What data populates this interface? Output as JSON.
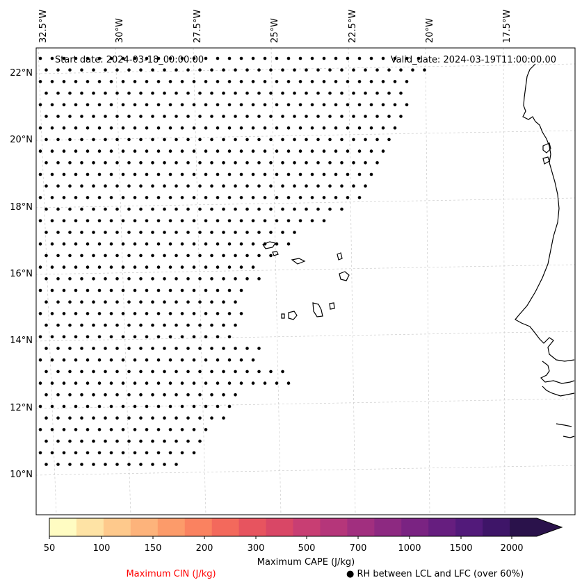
{
  "map": {
    "start_label": "Start date: 2024-03-18_00:00:00",
    "valid_label": "Valid_date: 2024-03-19T11:00:00.00",
    "lon_labels": [
      "32.5°W",
      "30°W",
      "27.5°W",
      "25°W",
      "22.5°W",
      "20°W",
      "17.5°W"
    ],
    "lat_labels": [
      "22°N",
      "20°N",
      "18°N",
      "16°N",
      "14°N",
      "12°N",
      "10°N"
    ],
    "gridline_color": "#cccccc",
    "coastline_color": "#000000",
    "dot_color": "#000000"
  },
  "colorbar": {
    "title": "Maximum CAPE (J/kg)",
    "ticks": [
      "50",
      "100",
      "150",
      "200",
      "300",
      "500",
      "700",
      "1000",
      "1500",
      "2000"
    ],
    "colors": [
      "#fffcc2",
      "#fee3a5",
      "#fec98c",
      "#fdb37b",
      "#fc9b6a",
      "#fa8260",
      "#f3695c",
      "#e7545f",
      "#d94766",
      "#c83e73",
      "#b5367a",
      "#a12f7f",
      "#8d2981",
      "#7a2382",
      "#661e7f",
      "#521a7a",
      "#3e1568",
      "#2a124b"
    ],
    "cin_label": "Maximum CIN (J/kg)",
    "rh_label": "● RH between LCL and LFC (over 60%)",
    "cin_color": "#ff0000"
  }
}
